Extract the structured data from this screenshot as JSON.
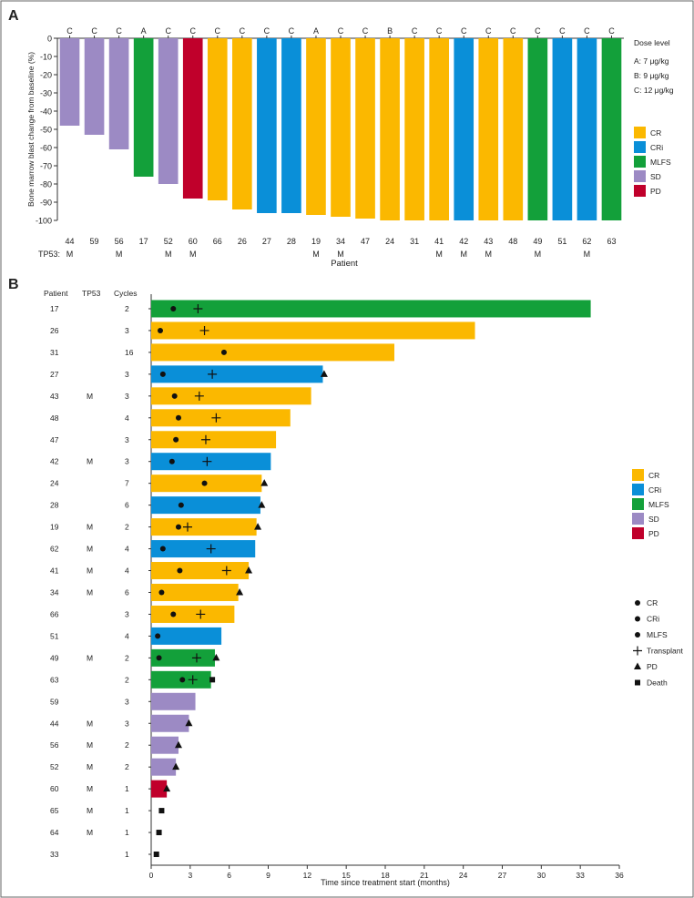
{
  "panel_labels": [
    "A",
    "B"
  ],
  "colors": {
    "CR": "#FBB800",
    "CRi": "#0A8FD8",
    "MLFS": "#13A03A",
    "SD": "#9C8AC4",
    "PD": "#C0002B"
  },
  "chart_data": [
    {
      "type": "bar",
      "panel": "A",
      "title": "",
      "ylabel": "Bone marrow blast change from baseline (%)",
      "xlabel": "Patient",
      "ylim": [
        -100,
        0
      ],
      "yticks": [
        0,
        -10,
        -20,
        -30,
        -40,
        -50,
        -60,
        -70,
        -80,
        -90,
        -100
      ],
      "tp53_row_label": "TP53:",
      "categories": [
        "44",
        "59",
        "56",
        "17",
        "52",
        "60",
        "66",
        "26",
        "27",
        "28",
        "19",
        "34",
        "47",
        "24",
        "31",
        "41",
        "42",
        "43",
        "48",
        "49",
        "51",
        "62",
        "63"
      ],
      "values": [
        -48,
        -53,
        -61,
        -76,
        -80,
        -88,
        -89,
        -94,
        -96,
        -96,
        -97,
        -98,
        -99,
        -100,
        -100,
        -100,
        -100,
        -100,
        -100,
        -100,
        -100,
        -100,
        -100
      ],
      "response": [
        "SD",
        "SD",
        "SD",
        "MLFS",
        "SD",
        "PD",
        "CR",
        "CR",
        "CRi",
        "CRi",
        "CR",
        "CR",
        "CR",
        "CR",
        "CR",
        "CR",
        "CRi",
        "CR",
        "CR",
        "MLFS",
        "CRi",
        "CRi",
        "MLFS"
      ],
      "dose_level": [
        "C",
        "C",
        "C",
        "A",
        "C",
        "C",
        "C",
        "C",
        "C",
        "C",
        "A",
        "C",
        "C",
        "B",
        "C",
        "C",
        "C",
        "C",
        "C",
        "C",
        "C",
        "C",
        "C"
      ],
      "tp53": [
        "M",
        "",
        "M",
        "",
        "M",
        "M",
        "",
        "",
        "",
        "",
        "M",
        "M",
        "",
        "",
        "",
        "M",
        "M",
        "M",
        "",
        "M",
        "",
        "M",
        ""
      ],
      "dose_legend": {
        "title": "Dose level",
        "items": [
          "A: 7 μg/kg",
          "B: 9 μg/kg",
          "C: 12 μg/kg"
        ]
      },
      "legend": [
        "CR",
        "CRi",
        "MLFS",
        "SD",
        "PD"
      ],
      "legend_position": "right"
    },
    {
      "type": "bar",
      "orientation": "horizontal",
      "panel": "B",
      "title": "",
      "xlabel": "Time since treatment start (months)",
      "xlim": [
        0,
        36
      ],
      "xticks": [
        0,
        3,
        6,
        9,
        12,
        15,
        18,
        21,
        24,
        27,
        30,
        33,
        36
      ],
      "column_headers": [
        "Patient",
        "TP53",
        "Cycles"
      ],
      "rows": [
        {
          "patient": "17",
          "tp53": "",
          "cycles": "2",
          "response": "MLFS",
          "duration": 33.8,
          "response_time": 1.7,
          "transplant": 3.6
        },
        {
          "patient": "26",
          "tp53": "",
          "cycles": "3",
          "response": "CR",
          "duration": 24.9,
          "response_time": 0.7,
          "transplant": 4.1
        },
        {
          "patient": "31",
          "tp53": "",
          "cycles": "16",
          "response": "CR",
          "duration": 18.7,
          "response_time": 5.6
        },
        {
          "patient": "27",
          "tp53": "",
          "cycles": "3",
          "response": "CRi",
          "duration": 13.2,
          "response_time": 0.9,
          "transplant": 4.7,
          "pd": 13.3
        },
        {
          "patient": "43",
          "tp53": "M",
          "cycles": "3",
          "response": "CR",
          "duration": 12.3,
          "response_time": 1.8,
          "transplant": 3.7
        },
        {
          "patient": "48",
          "tp53": "",
          "cycles": "4",
          "response": "CR",
          "duration": 10.7,
          "response_time": 2.1,
          "transplant": 5.0
        },
        {
          "patient": "47",
          "tp53": "",
          "cycles": "3",
          "response": "CR",
          "duration": 9.6,
          "response_time": 1.9,
          "transplant": 4.2
        },
        {
          "patient": "42",
          "tp53": "M",
          "cycles": "3",
          "response": "CRi",
          "duration": 9.2,
          "response_time": 1.6,
          "transplant": 4.3
        },
        {
          "patient": "24",
          "tp53": "",
          "cycles": "7",
          "response": "CR",
          "duration": 8.5,
          "response_time": 4.1,
          "pd": 8.7
        },
        {
          "patient": "28",
          "tp53": "",
          "cycles": "6",
          "response": "CRi",
          "duration": 8.4,
          "response_time": 2.3,
          "pd": 8.5
        },
        {
          "patient": "19",
          "tp53": "M",
          "cycles": "2",
          "response": "CR",
          "duration": 8.1,
          "response_time": 2.1,
          "transplant": 2.8,
          "pd": 8.2
        },
        {
          "patient": "62",
          "tp53": "M",
          "cycles": "4",
          "response": "CRi",
          "duration": 8.0,
          "response_time": 0.9,
          "transplant": 4.6
        },
        {
          "patient": "41",
          "tp53": "M",
          "cycles": "4",
          "response": "CR",
          "duration": 7.5,
          "response_time": 2.2,
          "transplant": 5.8,
          "pd": 7.5
        },
        {
          "patient": "34",
          "tp53": "M",
          "cycles": "6",
          "response": "CR",
          "duration": 6.7,
          "response_time": 0.8,
          "pd": 6.8
        },
        {
          "patient": "66",
          "tp53": "",
          "cycles": "3",
          "response": "CR",
          "duration": 6.4,
          "response_time": 1.7,
          "transplant": 3.8
        },
        {
          "patient": "51",
          "tp53": "",
          "cycles": "4",
          "response": "CRi",
          "duration": 5.4,
          "response_time": 0.5
        },
        {
          "patient": "49",
          "tp53": "M",
          "cycles": "2",
          "response": "MLFS",
          "duration": 4.9,
          "response_time": 0.6,
          "transplant": 3.5,
          "pd": 5.0
        },
        {
          "patient": "63",
          "tp53": "",
          "cycles": "2",
          "response": "MLFS",
          "duration": 4.6,
          "response_time": 2.4,
          "transplant": 3.2,
          "death": 4.7
        },
        {
          "patient": "59",
          "tp53": "",
          "cycles": "3",
          "response": "SD",
          "duration": 3.4
        },
        {
          "patient": "44",
          "tp53": "M",
          "cycles": "3",
          "response": "SD",
          "duration": 2.9,
          "pd": 2.9
        },
        {
          "patient": "56",
          "tp53": "M",
          "cycles": "2",
          "response": "SD",
          "duration": 2.1,
          "pd": 2.1
        },
        {
          "patient": "52",
          "tp53": "M",
          "cycles": "2",
          "response": "SD",
          "duration": 1.9,
          "pd": 1.9
        },
        {
          "patient": "60",
          "tp53": "M",
          "cycles": "1",
          "response": "PD",
          "duration": 1.2,
          "pd": 1.2
        },
        {
          "patient": "65",
          "tp53": "M",
          "cycles": "1",
          "response": "",
          "duration": 0,
          "death": 0.8
        },
        {
          "patient": "64",
          "tp53": "M",
          "cycles": "1",
          "response": "",
          "duration": 0,
          "death": 0.6
        },
        {
          "patient": "33",
          "tp53": "",
          "cycles": "1",
          "response": "",
          "duration": 0,
          "death": 0.4
        }
      ],
      "legend": [
        "CR",
        "CRi",
        "MLFS",
        "SD",
        "PD"
      ],
      "symbol_legend": [
        {
          "symbol": "dot",
          "label": "CR"
        },
        {
          "symbol": "dot",
          "label": "CRi"
        },
        {
          "symbol": "dot",
          "label": "MLFS"
        },
        {
          "symbol": "plus",
          "label": "Transplant"
        },
        {
          "symbol": "triangle",
          "label": "PD"
        },
        {
          "symbol": "square",
          "label": "Death"
        }
      ],
      "legend_position": "right"
    }
  ]
}
